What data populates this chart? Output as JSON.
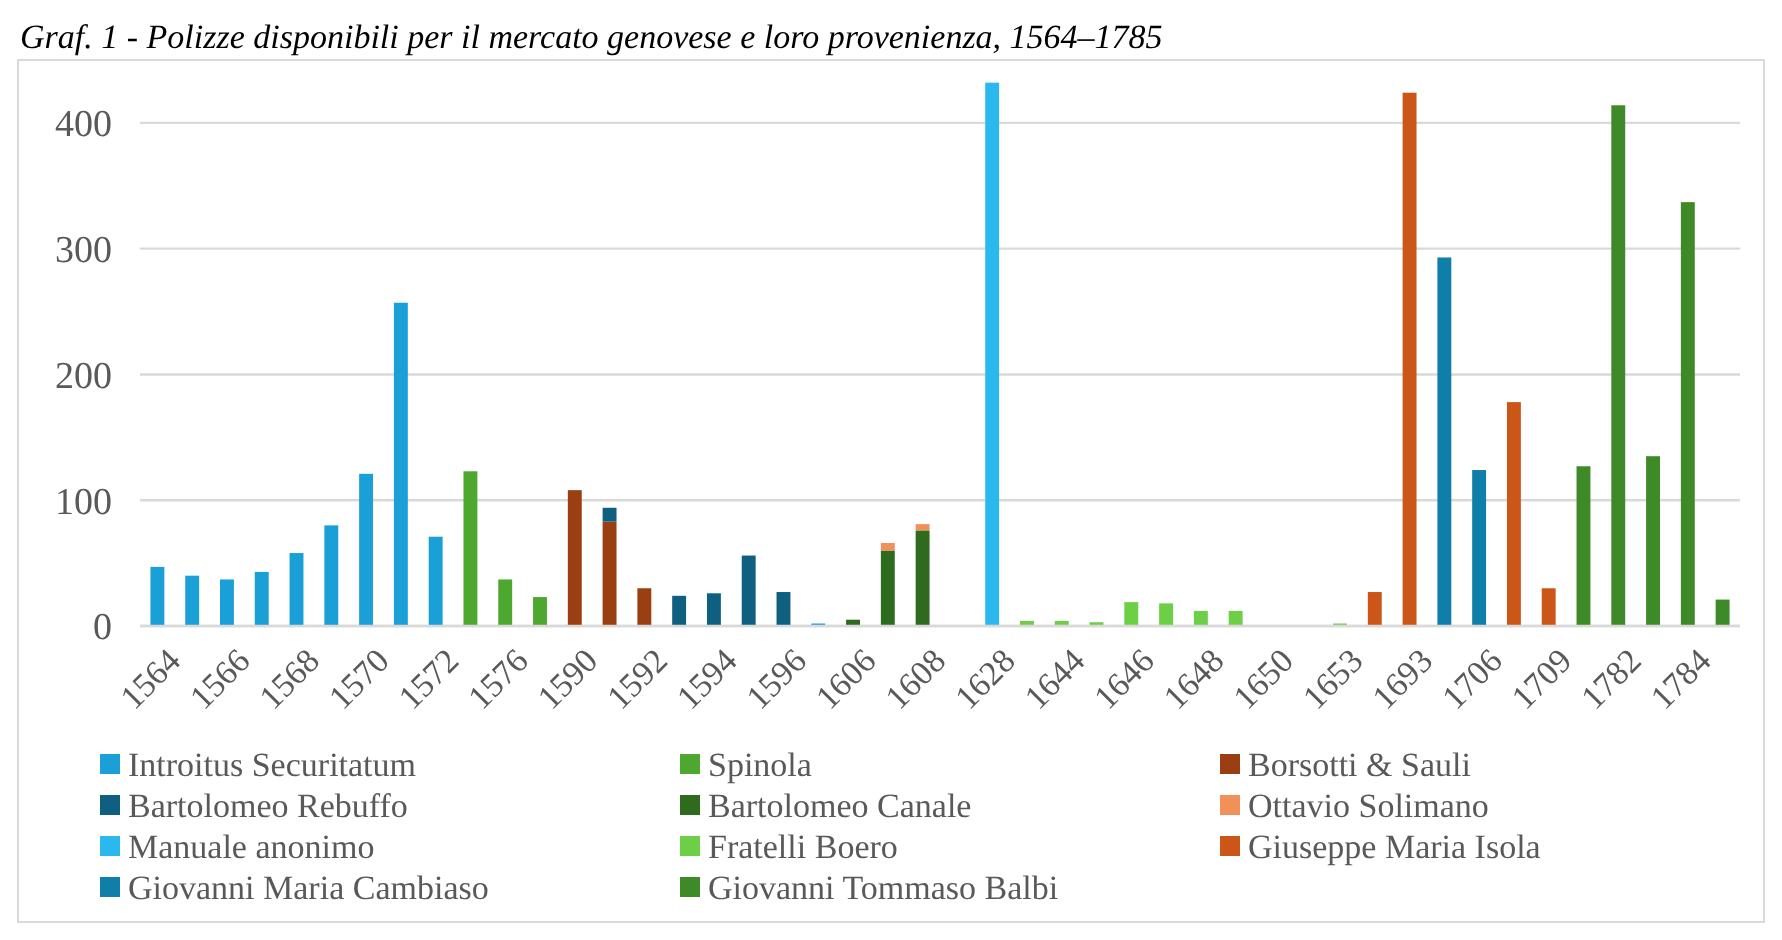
{
  "chart_data": {
    "type": "bar",
    "stacked": true,
    "title": "Graf. 1 - Polizze disponibili per il mercato genovese e loro provenienza, 1564–1785",
    "categories": [
      "1564",
      null,
      "1566",
      null,
      "1568",
      null,
      "1570",
      null,
      "1572",
      null,
      "1576",
      null,
      "1590",
      null,
      "1592",
      null,
      "1594",
      null,
      "1596",
      null,
      "1606",
      null,
      "1608",
      null,
      "1628",
      null,
      "1644",
      null,
      "1646",
      null,
      "1648",
      null,
      "1650",
      null,
      "1653",
      null,
      "1693",
      null,
      "1706",
      null,
      "1709",
      null,
      "1782",
      null,
      "1784",
      null
    ],
    "series": [
      {
        "name": "Introitus Securitatum",
        "color": "#1a9fd6",
        "values": [
          47,
          40,
          37,
          43,
          58,
          80,
          121,
          257,
          71,
          null,
          null,
          null,
          null,
          null,
          null,
          null,
          null,
          null,
          null,
          2,
          null,
          null,
          null,
          null,
          null,
          null,
          null,
          null,
          null,
          null,
          null,
          null,
          null,
          null,
          null,
          null,
          null,
          null,
          null,
          null,
          null,
          null,
          null,
          null,
          null,
          null
        ]
      },
      {
        "name": "Spinola",
        "color": "#4ea72e",
        "values": [
          null,
          null,
          null,
          null,
          null,
          null,
          null,
          null,
          null,
          123,
          37,
          23,
          null,
          null,
          null,
          null,
          null,
          null,
          null,
          null,
          null,
          null,
          null,
          null,
          null,
          null,
          null,
          null,
          null,
          null,
          null,
          null,
          null,
          null,
          null,
          null,
          null,
          null,
          null,
          null,
          null,
          null,
          null,
          null,
          null,
          null
        ]
      },
      {
        "name": "Borsotti & Sauli",
        "color": "#9a3f12",
        "values": [
          null,
          null,
          null,
          null,
          null,
          null,
          null,
          null,
          null,
          null,
          null,
          null,
          108,
          83,
          30,
          null,
          null,
          null,
          null,
          null,
          null,
          null,
          null,
          null,
          null,
          null,
          null,
          null,
          null,
          null,
          null,
          null,
          null,
          null,
          null,
          null,
          null,
          null,
          null,
          null,
          null,
          null,
          null,
          null,
          null,
          null
        ]
      },
      {
        "name": "Bartolomeo Rebuffo",
        "color": "#0e5f80",
        "values": [
          null,
          null,
          null,
          null,
          null,
          null,
          null,
          null,
          null,
          null,
          null,
          null,
          null,
          11,
          null,
          24,
          26,
          56,
          27,
          null,
          null,
          null,
          null,
          null,
          null,
          null,
          null,
          null,
          null,
          null,
          null,
          null,
          null,
          null,
          null,
          null,
          null,
          null,
          null,
          null,
          null,
          null,
          null,
          null,
          null,
          null
        ]
      },
      {
        "name": "Bartolomeo Canale",
        "color": "#2e6b1f",
        "values": [
          null,
          null,
          null,
          null,
          null,
          null,
          null,
          null,
          null,
          null,
          null,
          null,
          null,
          null,
          null,
          null,
          null,
          null,
          null,
          null,
          5,
          60,
          76,
          null,
          null,
          null,
          null,
          null,
          null,
          null,
          null,
          null,
          null,
          null,
          null,
          null,
          null,
          null,
          null,
          null,
          null,
          null,
          null,
          null,
          null,
          null
        ]
      },
      {
        "name": "Ottavio Solimano",
        "color": "#f0915a",
        "values": [
          null,
          null,
          null,
          null,
          null,
          null,
          null,
          null,
          null,
          null,
          null,
          null,
          null,
          null,
          null,
          null,
          null,
          null,
          null,
          null,
          null,
          6,
          5,
          null,
          null,
          null,
          null,
          null,
          null,
          null,
          null,
          null,
          null,
          null,
          null,
          null,
          null,
          null,
          null,
          null,
          null,
          null,
          null,
          null,
          null,
          null
        ]
      },
      {
        "name": "Manuale anonimo",
        "color": "#2bb8ee",
        "values": [
          null,
          null,
          null,
          null,
          null,
          null,
          null,
          null,
          null,
          null,
          null,
          null,
          null,
          null,
          null,
          null,
          null,
          null,
          null,
          null,
          null,
          null,
          null,
          null,
          432,
          null,
          null,
          null,
          null,
          null,
          null,
          null,
          null,
          null,
          null,
          null,
          null,
          null,
          null,
          null,
          null,
          null,
          null,
          null,
          null,
          null
        ]
      },
      {
        "name": "Fratelli Boero",
        "color": "#6ccf45",
        "values": [
          null,
          null,
          null,
          null,
          null,
          null,
          null,
          null,
          null,
          null,
          null,
          null,
          null,
          null,
          null,
          null,
          null,
          null,
          null,
          null,
          null,
          null,
          null,
          null,
          null,
          4,
          4,
          3,
          19,
          18,
          12,
          12,
          null,
          null,
          2,
          null,
          null,
          null,
          null,
          null,
          null,
          null,
          null,
          null,
          null,
          null
        ]
      },
      {
        "name": "Giuseppe Maria Isola",
        "color": "#cc5518",
        "values": [
          null,
          null,
          null,
          null,
          null,
          null,
          null,
          null,
          null,
          null,
          null,
          null,
          null,
          null,
          null,
          null,
          null,
          null,
          null,
          null,
          null,
          null,
          null,
          null,
          null,
          null,
          null,
          null,
          null,
          null,
          null,
          null,
          null,
          null,
          null,
          27,
          424,
          null,
          null,
          178,
          30,
          null,
          null,
          null,
          null,
          null
        ]
      },
      {
        "name": "Giovanni Maria Cambiaso",
        "color": "#0f7ea8",
        "values": [
          null,
          null,
          null,
          null,
          null,
          null,
          null,
          null,
          null,
          null,
          null,
          null,
          null,
          null,
          null,
          null,
          null,
          null,
          null,
          null,
          null,
          null,
          null,
          null,
          null,
          null,
          null,
          null,
          null,
          null,
          null,
          null,
          null,
          null,
          null,
          null,
          null,
          293,
          124,
          null,
          null,
          null,
          null,
          null,
          null,
          null
        ]
      },
      {
        "name": "Giovanni Tommaso Balbi",
        "color": "#3f8a28",
        "values": [
          null,
          null,
          null,
          null,
          null,
          null,
          null,
          null,
          null,
          null,
          null,
          null,
          null,
          null,
          null,
          null,
          null,
          null,
          null,
          null,
          null,
          null,
          null,
          null,
          null,
          null,
          null,
          null,
          null,
          null,
          null,
          null,
          null,
          null,
          null,
          null,
          null,
          null,
          null,
          null,
          null,
          127,
          414,
          135,
          337,
          21
        ]
      }
    ],
    "ylim": [
      0,
      450
    ],
    "yticks": [
      0,
      100,
      200,
      300,
      400
    ],
    "grid": "y",
    "legend": "bottom"
  }
}
